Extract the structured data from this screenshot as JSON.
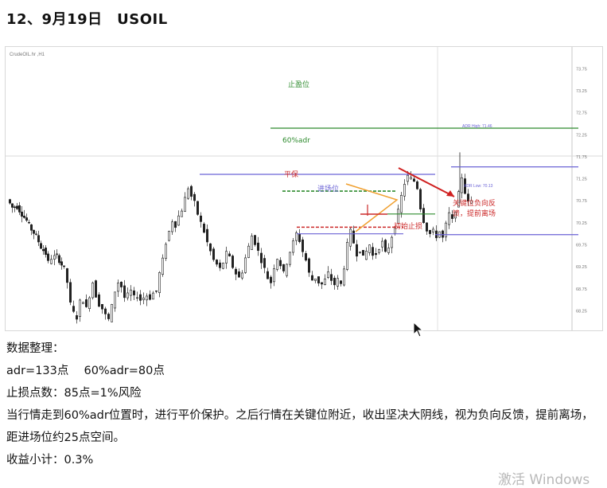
{
  "title": "12、9月19日　USOIL",
  "chart_data": {
    "type": "candlestick",
    "symbol_header": "CrudeOIL.hr  ,H1  ",
    "header_values": "",
    "indicator_header": "",
    "price_axis": [
      "73.75",
      "73.25",
      "72.75",
      "72.25",
      "71.75",
      "71.25",
      "70.75",
      "70.25",
      "69.75",
      "69.25",
      "68.75",
      "68.25"
    ],
    "ylim": [
      67.95,
      74.1
    ],
    "series": [
      {
        "name": "USOIL H1",
        "close_path": [
          [
            0,
            70.78
          ],
          [
            6,
            70.6
          ],
          [
            12,
            70.62
          ],
          [
            18,
            70.45
          ],
          [
            24,
            70.3
          ],
          [
            30,
            70.1
          ],
          [
            36,
            69.95
          ],
          [
            42,
            69.7
          ],
          [
            48,
            69.55
          ],
          [
            52,
            69.35
          ],
          [
            56,
            69.45
          ],
          [
            62,
            69.5
          ],
          [
            68,
            69.3
          ],
          [
            72,
            69.2
          ],
          [
            76,
            68.9
          ],
          [
            80,
            68.4
          ],
          [
            84,
            68.2
          ],
          [
            88,
            68.1
          ],
          [
            92,
            68.45
          ],
          [
            96,
            68.5
          ],
          [
            100,
            68.3
          ],
          [
            104,
            68.6
          ],
          [
            108,
            68.9
          ],
          [
            112,
            68.6
          ],
          [
            116,
            68.4
          ],
          [
            120,
            68.3
          ],
          [
            124,
            68.15
          ],
          [
            128,
            68.05
          ],
          [
            132,
            68.35
          ],
          [
            136,
            68.7
          ],
          [
            140,
            68.9
          ],
          [
            144,
            68.8
          ],
          [
            148,
            68.55
          ],
          [
            152,
            68.6
          ],
          [
            156,
            68.7
          ],
          [
            160,
            68.55
          ],
          [
            164,
            68.6
          ],
          [
            168,
            68.5
          ],
          [
            172,
            68.55
          ],
          [
            176,
            68.6
          ],
          [
            180,
            68.55
          ],
          [
            184,
            68.65
          ],
          [
            188,
            68.7
          ],
          [
            192,
            69.1
          ],
          [
            196,
            69.4
          ],
          [
            200,
            69.8
          ],
          [
            204,
            70.05
          ],
          [
            208,
            70.3
          ],
          [
            212,
            70.2
          ],
          [
            216,
            70.4
          ],
          [
            220,
            70.55
          ],
          [
            224,
            70.8
          ],
          [
            228,
            71.05
          ],
          [
            232,
            70.85
          ],
          [
            236,
            70.7
          ],
          [
            240,
            70.45
          ],
          [
            244,
            70.25
          ],
          [
            248,
            70.05
          ],
          [
            252,
            69.8
          ],
          [
            256,
            69.6
          ],
          [
            260,
            69.4
          ],
          [
            264,
            69.3
          ],
          [
            268,
            69.2
          ],
          [
            272,
            69.35
          ],
          [
            276,
            69.55
          ],
          [
            280,
            69.45
          ],
          [
            284,
            69.25
          ],
          [
            288,
            69.1
          ],
          [
            292,
            69.0
          ],
          [
            296,
            69.15
          ],
          [
            300,
            69.45
          ],
          [
            304,
            69.7
          ],
          [
            308,
            69.95
          ],
          [
            312,
            69.8
          ],
          [
            316,
            69.6
          ],
          [
            320,
            69.4
          ],
          [
            324,
            69.2
          ],
          [
            328,
            69.0
          ],
          [
            332,
            68.9
          ],
          [
            336,
            69.25
          ],
          [
            340,
            69.45
          ],
          [
            344,
            69.3
          ],
          [
            348,
            69.1
          ],
          [
            352,
            69.35
          ],
          [
            356,
            69.6
          ],
          [
            360,
            69.8
          ],
          [
            364,
            70.0
          ],
          [
            368,
            69.85
          ],
          [
            372,
            69.6
          ],
          [
            376,
            69.4
          ],
          [
            380,
            69.1
          ],
          [
            384,
            68.95
          ],
          [
            388,
            69.0
          ],
          [
            392,
            68.9
          ],
          [
            396,
            68.85
          ],
          [
            400,
            68.95
          ],
          [
            404,
            69.1
          ],
          [
            408,
            68.95
          ],
          [
            412,
            68.85
          ],
          [
            416,
            68.95
          ],
          [
            420,
            68.85
          ],
          [
            424,
            69.25
          ],
          [
            428,
            69.75
          ],
          [
            432,
            70.05
          ],
          [
            436,
            69.8
          ],
          [
            440,
            69.55
          ],
          [
            444,
            69.65
          ],
          [
            448,
            69.45
          ],
          [
            452,
            69.6
          ],
          [
            456,
            69.75
          ],
          [
            460,
            69.5
          ],
          [
            464,
            69.55
          ],
          [
            468,
            69.7
          ],
          [
            472,
            69.8
          ],
          [
            476,
            69.55
          ],
          [
            480,
            69.7
          ],
          [
            484,
            69.95
          ],
          [
            488,
            70.2
          ],
          [
            492,
            70.5
          ],
          [
            496,
            70.85
          ],
          [
            500,
            71.15
          ],
          [
            504,
            71.3
          ],
          [
            508,
            71.25
          ],
          [
            512,
            71.2
          ],
          [
            516,
            71.05
          ],
          [
            520,
            70.6
          ],
          [
            524,
            70.3
          ],
          [
            528,
            70.1
          ],
          [
            532,
            70.0
          ],
          [
            536,
            70.05
          ],
          [
            540,
            69.95
          ],
          [
            544,
            70.05
          ],
          [
            548,
            69.9
          ],
          [
            552,
            70.2
          ],
          [
            556,
            70.45
          ],
          [
            560,
            70.3
          ],
          [
            564,
            70.55
          ],
          [
            568,
            70.9
          ],
          [
            572,
            71.3
          ],
          [
            576,
            70.95
          ],
          [
            580,
            70.7
          ],
          [
            584,
            70.75
          ]
        ]
      }
    ],
    "levels": [
      {
        "label": "止盈位",
        "price": 72.4,
        "color": "#2e8b2e",
        "x_from": 333,
        "x_to": 720
      },
      {
        "label": "",
        "price": 71.35,
        "color": "#6b63d6",
        "x_from": 244,
        "x_to": 540
      },
      {
        "label": "60%adr",
        "price": 70.97,
        "color": "#2e8b2e",
        "x_from": 348,
        "x_to": 490,
        "dashed": true
      },
      {
        "label": "平保",
        "price": 70.15,
        "color": "#cc2a2a",
        "x_from": 366,
        "x_to": 500,
        "dashed": true
      },
      {
        "label": "进场位",
        "price": 70.0,
        "color": "#6b63d6",
        "x_from": 366,
        "x_to": 500
      },
      {
        "label": "",
        "price": 70.45,
        "color": "#2e8b2e",
        "x_from": 480,
        "x_to": 540
      },
      {
        "label": "",
        "price": 71.52,
        "color": "#6b63d6",
        "x_from": 560,
        "x_to": 720
      },
      {
        "label": "",
        "price": 69.98,
        "color": "#6b63d6",
        "x_from": 540,
        "x_to": 720
      }
    ],
    "annotations": [
      {
        "text": "止盈位",
        "color": "#2e8b2e"
      },
      {
        "text": "60%adr",
        "color": "#2e8b2e"
      },
      {
        "text": "平保",
        "color": "#cc2a2a"
      },
      {
        "text": "进场位",
        "color": "#6b63d6"
      },
      {
        "text": "初始止损",
        "color": "#cc2a2a"
      },
      {
        "text": "关键位负向反",
        "color": "#cc2a2a"
      },
      {
        "text": "馈，提前离场",
        "color": "#cc2a2a"
      }
    ],
    "small_labels": [
      {
        "text": "ADR High: 71.46",
        "color": "#6b63d6"
      },
      {
        "text": "ADR Low: 70.13",
        "color": "#6b63d6"
      }
    ],
    "grid": false
  },
  "notes": {
    "heading": "数据整理：",
    "adr_line": "adr=133点　 60%adr=80点",
    "stop_line": "止损点数：85点=1%风险",
    "paragraph": "当行情走到60%adr位置时，进行平价保护。之后行情在关键位附近，收出坚决大阴线，视为负向反馈，提前离场，距进场位约25点空间。",
    "profit_line": "收益小计：0.3%"
  },
  "watermark": "激活 Windows"
}
